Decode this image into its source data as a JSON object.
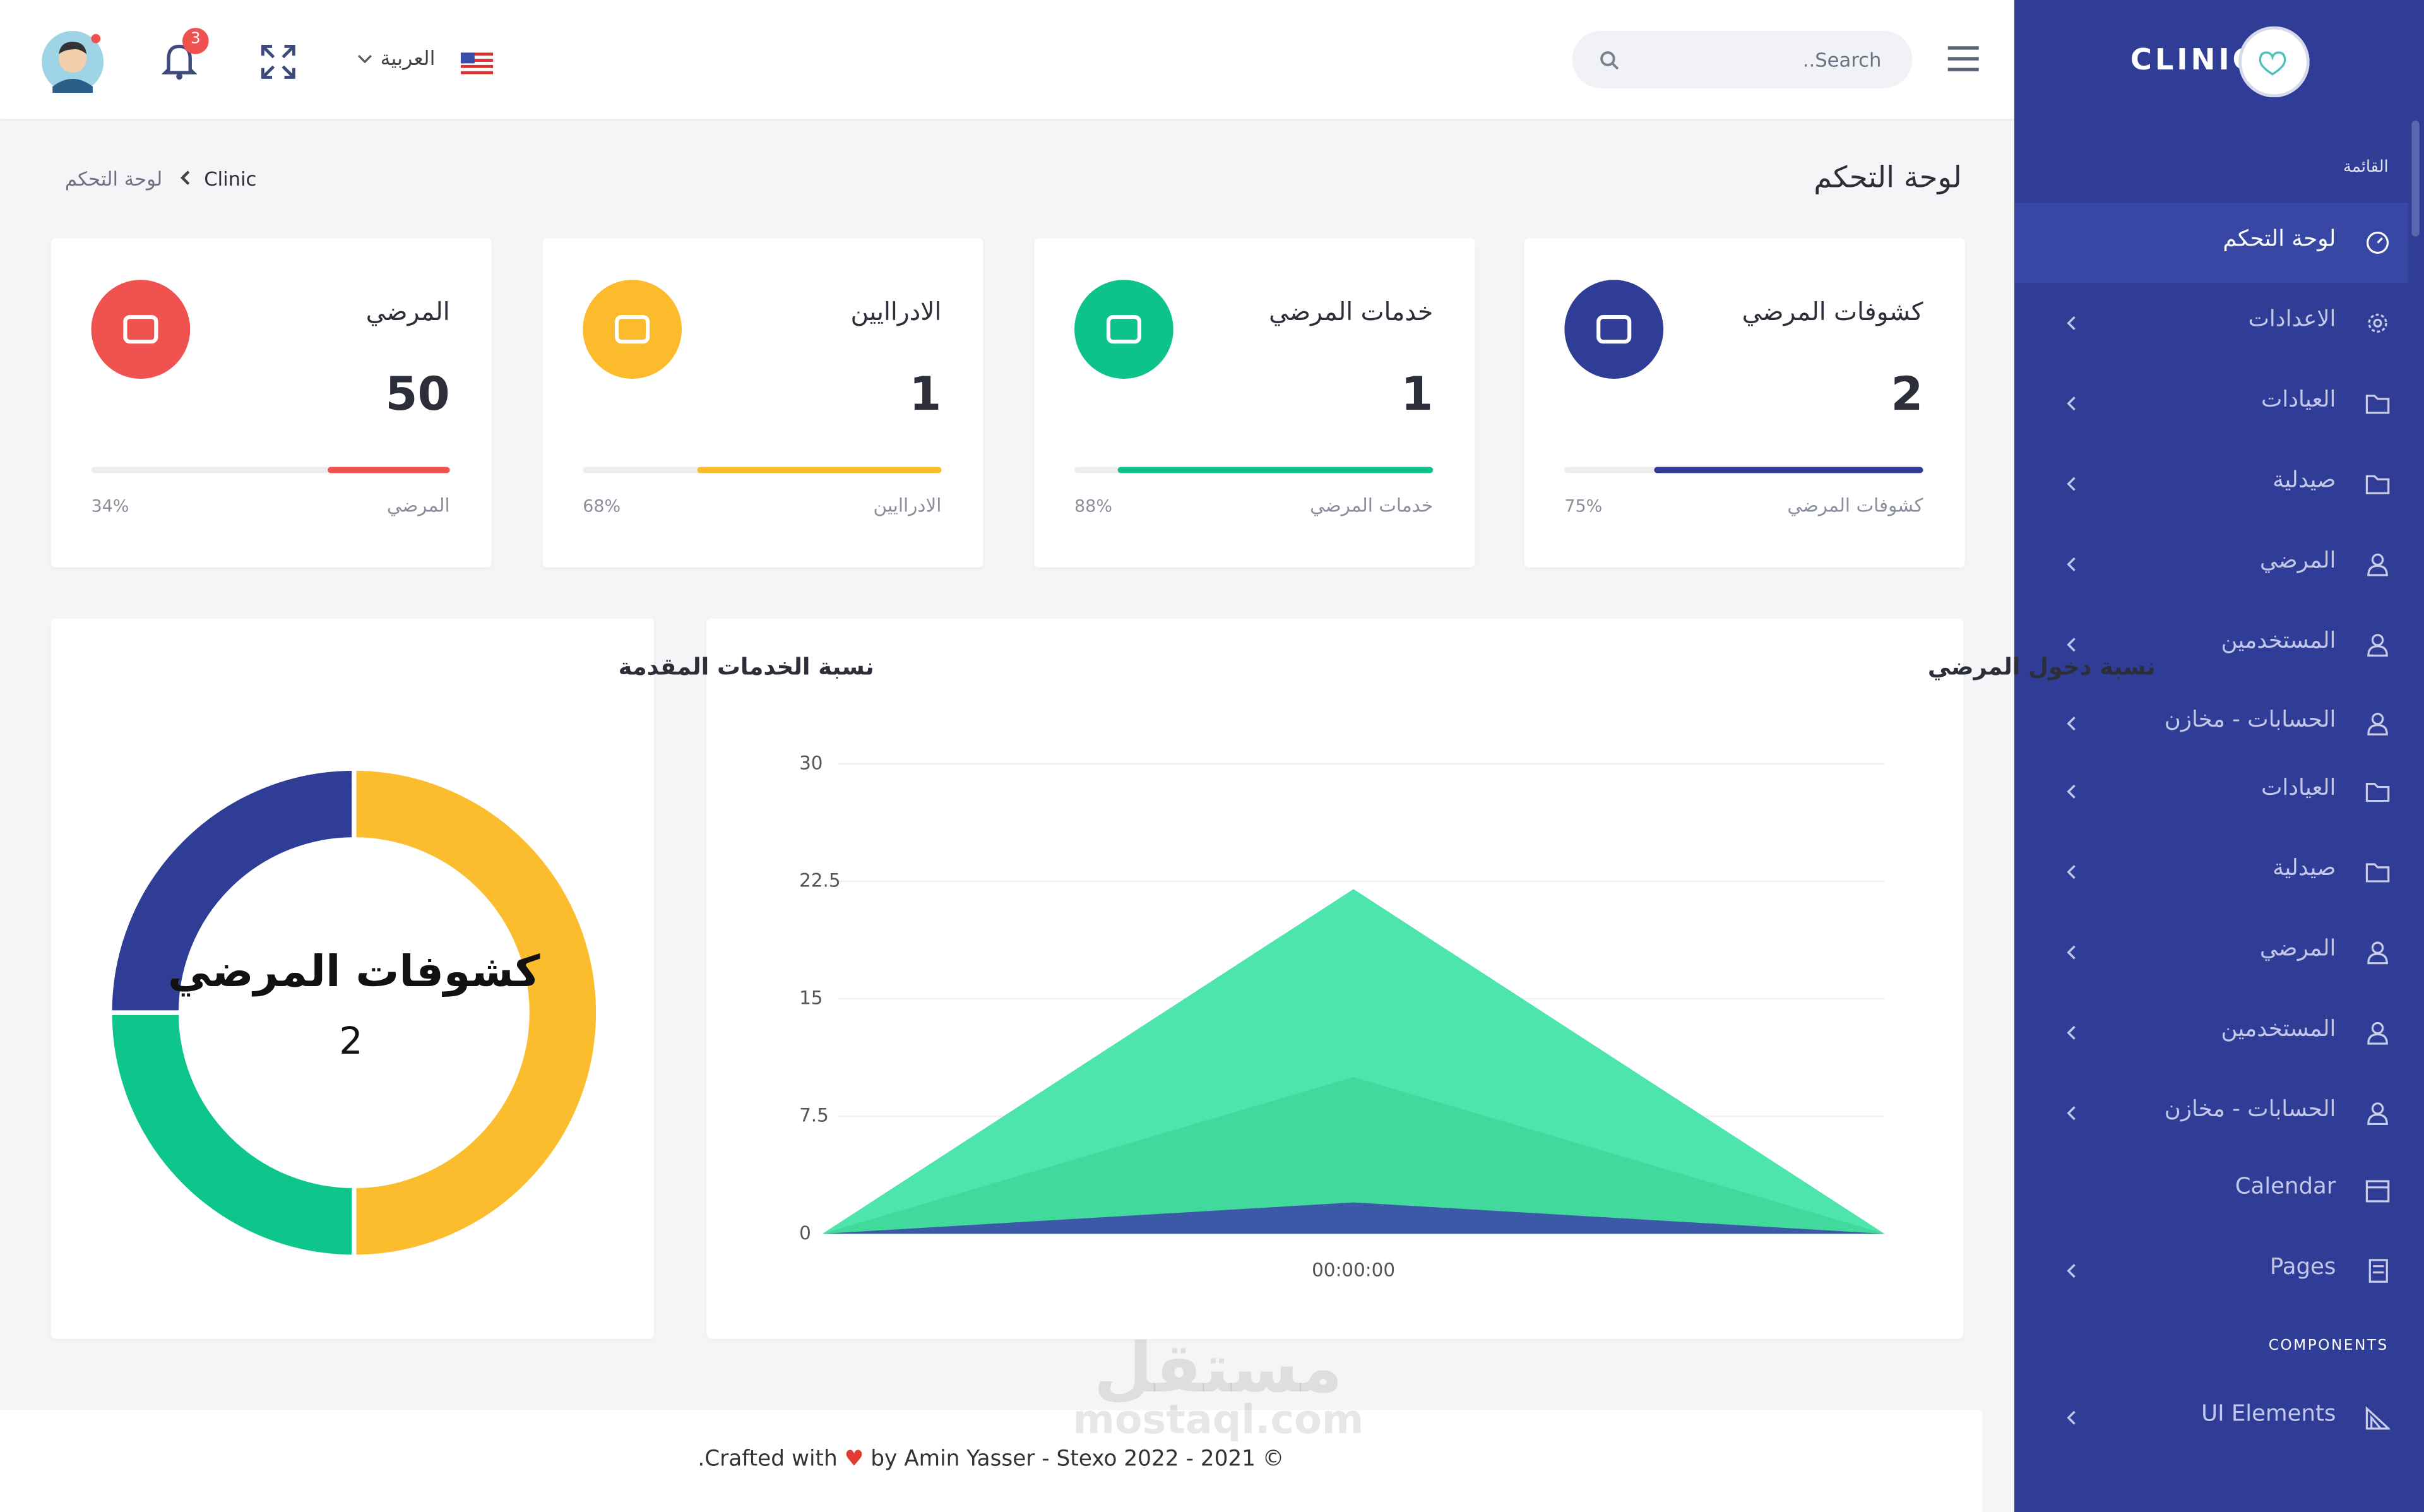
{
  "header": {
    "search_placeholder": "..Search",
    "language": "العربية",
    "notification_count": "3"
  },
  "sidebar": {
    "brand": "CLINIC",
    "menu_label": "القائمة",
    "items": [
      "لوحة التحكم",
      "الاعدادات",
      "العيادات",
      "صيدلية",
      "المرضي",
      "المستخدمين",
      "الحسابات - مخازن",
      "العيادات",
      "صيدلية",
      "المرضي",
      "المستخدمين",
      "الحسابات - مخازن",
      "Calendar",
      "Pages"
    ],
    "components_label": "COMPONENTS",
    "components_items": [
      "UI Elements"
    ]
  },
  "page": {
    "title": "لوحة التحكم",
    "breadcrumb": [
      "Clinic",
      "لوحة التحكم"
    ]
  },
  "stats": [
    {
      "title": "كشوفات المرضي",
      "value": 2,
      "label": "كشوفات المرضي",
      "progress": {
        "value": 75,
        "label": "75%"
      },
      "color": "#2f3d96"
    },
    {
      "title": "خدمات المرضي",
      "value": 1,
      "label": "خدمات المرضي",
      "progress": {
        "value": 88,
        "label": "88%"
      },
      "color": "#0dc28b"
    },
    {
      "title": "الادراايين",
      "value": 1,
      "label": "الادراايين",
      "progress": {
        "value": 68,
        "label": "68%"
      },
      "color": "#fbbb2c"
    },
    {
      "title": "المرضي",
      "value": 50,
      "label": "المرضي",
      "progress": {
        "value": 34,
        "label": "34%"
      },
      "color": "#f0524f"
    }
  ],
  "chart_data": [
    {
      "type": "area",
      "title": "نسبة دخول المرضي",
      "categories": [
        null,
        "00:00:00",
        null
      ],
      "series": [
        {
          "color": "#43e3aa",
          "values": [
            0,
            22,
            0
          ]
        },
        {
          "color": "#3bcf8e",
          "values": [
            0,
            10,
            0
          ]
        },
        {
          "color": "#3b52a6",
          "values": [
            0,
            2,
            0
          ]
        }
      ],
      "ylim": [
        0,
        30
      ],
      "yticks": [
        0,
        7.5,
        15,
        22.5,
        30
      ],
      "grid": true
    },
    {
      "type": "donut",
      "title": "نسبة الخدمات المقدمة",
      "center_label": "كشوفات المرضي",
      "center_value": 2,
      "values": [
        2,
        1,
        1
      ],
      "colors": [
        "#fbbd2e",
        "#0ec68b",
        "#2f3d96"
      ]
    }
  ],
  "footer": {
    "before": ".Crafted with",
    "after": "by Amin Yasser - Stexo 2022 - 2021 ©"
  },
  "watermark": {
    "arabic": "مستقل",
    "latin": "mostaql.com"
  }
}
